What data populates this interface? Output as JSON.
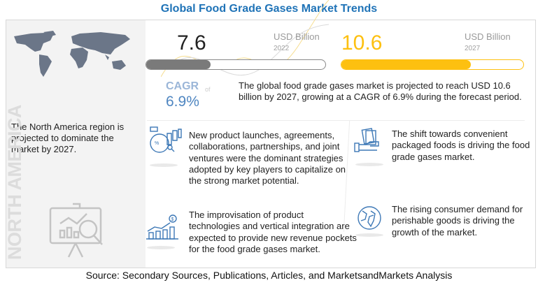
{
  "title": "Global Food Grade Gases Market Trends",
  "region": {
    "text": "The North America region is projected to dominate the market by 2027.",
    "label": "NORTH AMERICA"
  },
  "market_2022": {
    "value": "7.6",
    "unit": "USD Billion",
    "year": "2022",
    "bar_fill_fraction": 0.36,
    "color": "#7a7a7a"
  },
  "market_2027": {
    "value": "10.6",
    "unit": "USD Billion",
    "year": "2027",
    "bar_fill_fraction": 0.71,
    "color": "#fdc010"
  },
  "cagr": {
    "label": "CAGR",
    "of": "of",
    "value": "6.9%",
    "color": "#5b8ec6"
  },
  "summary": "The global food grade gases market is projected to reach USD 10.6 billion by 2027, growing at a CAGR of 6.9% during the forecast period.",
  "insights": [
    {
      "icon": "strategy-chart-icon",
      "text": "New product launches, agreements, collaborations, partnerships, and joint ventures were the dominant strategies adopted by key players to capitalize on the strong market potential."
    },
    {
      "icon": "money-hand-icon",
      "text": "The shift towards convenient packaged foods is driving the food grade gases market."
    },
    {
      "icon": "revenue-growth-icon",
      "text": "The improvisation of product technologies and vertical integration are expected to provide new revenue pockets for the food grade gases market."
    },
    {
      "icon": "globe-icon",
      "text": "The rising consumer demand for perishable goods is driving the growth of the market."
    }
  ],
  "source": "Source: Secondary Sources, Publications, Articles, and MarketsandMarkets Analysis"
}
